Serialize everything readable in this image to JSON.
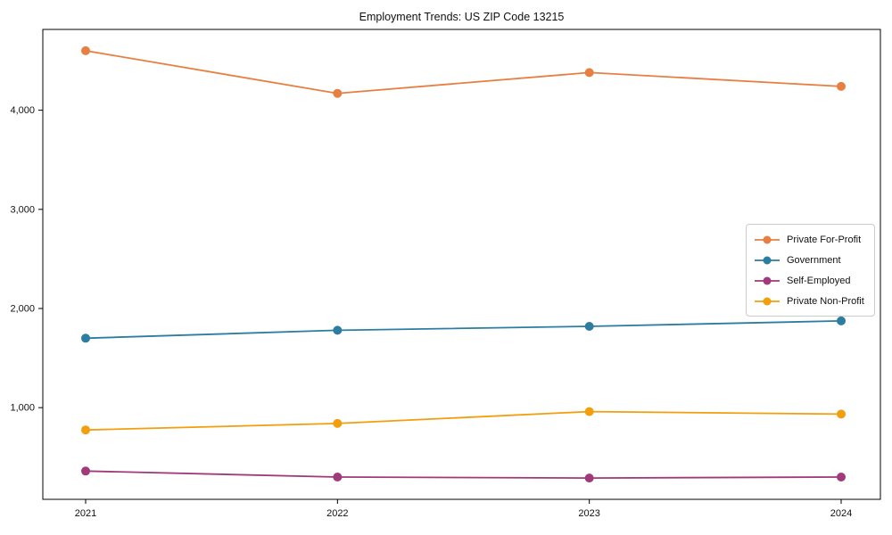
{
  "page": {
    "background_color": "#ffffff",
    "text_color": "#111111",
    "axis_color": "#000000",
    "legend_border_color": "#cccccc"
  },
  "chart_data": {
    "type": "line",
    "title": "Employment Trends: US ZIP Code 13215",
    "xlabel": "",
    "ylabel": "",
    "categories": [
      "2021",
      "2022",
      "2023",
      "2024"
    ],
    "series": [
      {
        "name": "Private For-Profit",
        "color": "#e87f42",
        "values": [
          4600,
          4170,
          4380,
          4240
        ]
      },
      {
        "name": "Government",
        "color": "#2c7da0",
        "values": [
          1700,
          1780,
          1820,
          1875
        ]
      },
      {
        "name": "Self-Employed",
        "color": "#a03a7a",
        "values": [
          360,
          300,
          290,
          300
        ]
      },
      {
        "name": "Private Non-Profit",
        "color": "#f29e0d",
        "values": [
          775,
          840,
          960,
          935
        ]
      }
    ],
    "ylim": [
      75,
      4815
    ],
    "y_ticks": [
      {
        "value": 1000,
        "label": "1,000"
      },
      {
        "value": 2000,
        "label": "2,000"
      },
      {
        "value": 3000,
        "label": "3,000"
      },
      {
        "value": 4000,
        "label": "4,000"
      }
    ],
    "grid": false,
    "legend_position": "right-middle",
    "marker": "circle",
    "marker_radius": 5,
    "line_width": 1.8
  }
}
